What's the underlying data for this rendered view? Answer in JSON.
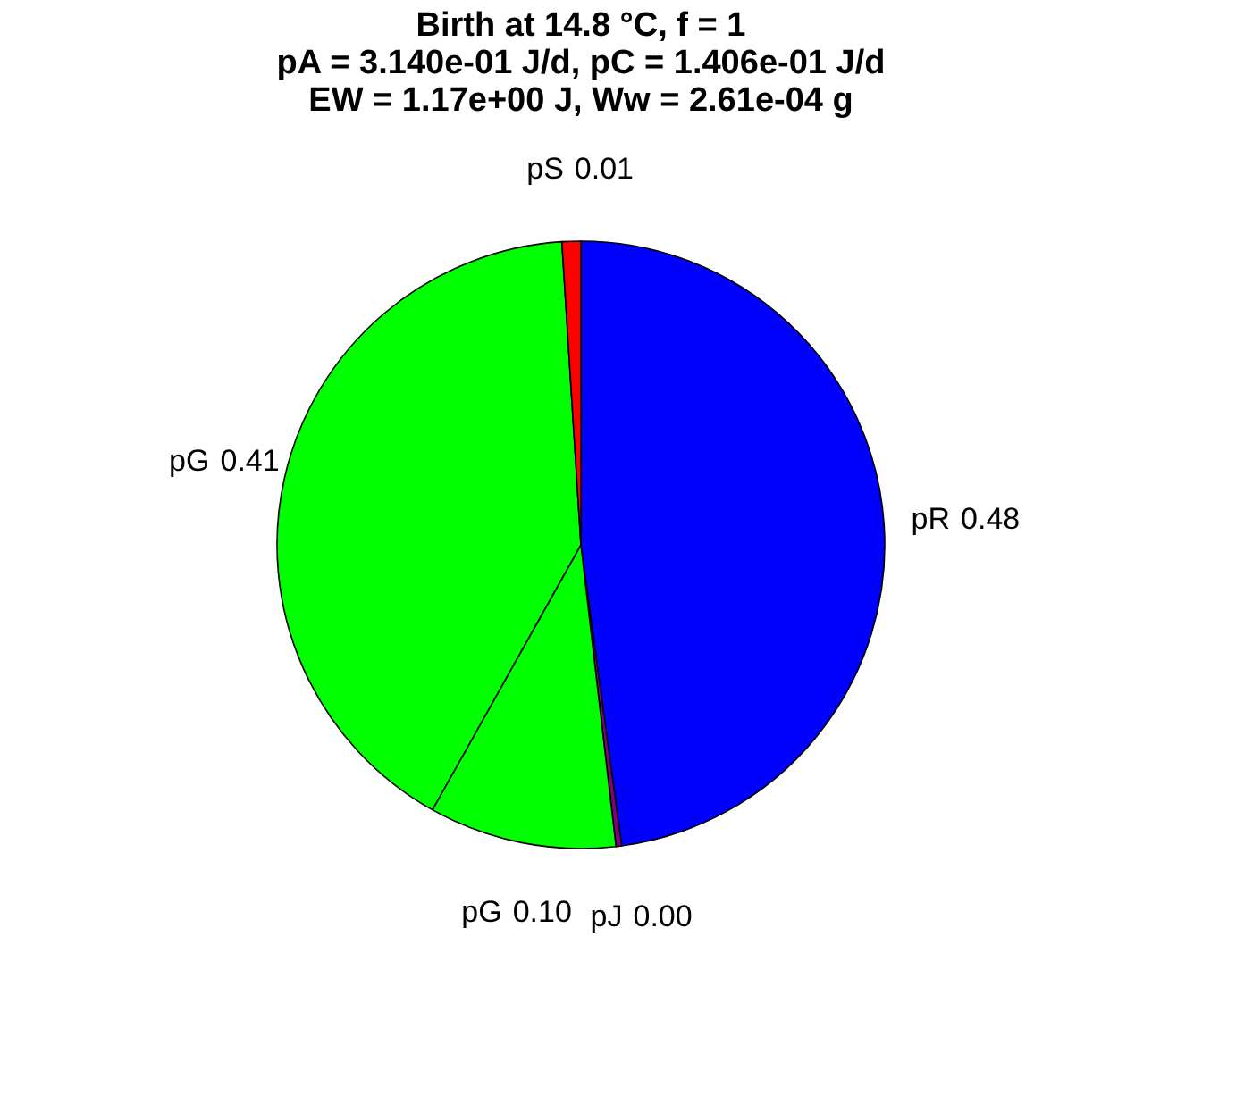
{
  "chart_data": {
    "type": "pie",
    "title": [
      "Birth at 14.8 °C, f = 1",
      "pA = 3.140e-01 J/d, pC = 1.406e-01 J/d",
      "EW = 1.17e+00 J, Ww = 2.61e-04 g"
    ],
    "categories": [
      "pR",
      "pJ",
      "pG",
      "pG",
      "pS"
    ],
    "values": [
      0.48,
      0.003,
      0.1,
      0.41,
      0.01
    ],
    "value_labels": [
      "0.48",
      "0.00",
      "0.10",
      "0.41",
      "0.01"
    ],
    "colors": [
      "#0000ff",
      "#800080",
      "#00ff00",
      "#00ff00",
      "#ff0000"
    ],
    "legend": false
  }
}
